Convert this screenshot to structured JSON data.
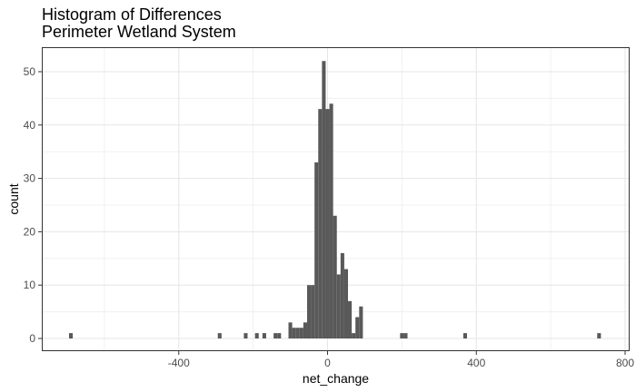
{
  "chart_data": {
    "type": "bar",
    "title": "Histogram of Differences",
    "subtitle": "Perimeter Wetland System",
    "xlabel": "net_change",
    "ylabel": "count",
    "xlim": [
      -700,
      800
    ],
    "ylim": [
      0,
      55
    ],
    "x_ticks": [
      -400,
      0,
      400,
      800
    ],
    "y_ticks": [
      0,
      10,
      20,
      30,
      40,
      50
    ],
    "x_tick_labels": [
      "-400",
      "0",
      "400",
      "800"
    ],
    "y_tick_labels": [
      "0",
      "10",
      "20",
      "30",
      "40",
      "50"
    ],
    "bin_width": 10,
    "grid": true,
    "bar_color": "#595959",
    "bins": [
      {
        "x": -690,
        "count": 1
      },
      {
        "x": -290,
        "count": 1
      },
      {
        "x": -220,
        "count": 1
      },
      {
        "x": -190,
        "count": 1
      },
      {
        "x": -170,
        "count": 1
      },
      {
        "x": -140,
        "count": 1
      },
      {
        "x": -130,
        "count": 1
      },
      {
        "x": -100,
        "count": 3
      },
      {
        "x": -90,
        "count": 2
      },
      {
        "x": -80,
        "count": 2
      },
      {
        "x": -70,
        "count": 2
      },
      {
        "x": -60,
        "count": 3
      },
      {
        "x": -50,
        "count": 10
      },
      {
        "x": -40,
        "count": 10
      },
      {
        "x": -30,
        "count": 33
      },
      {
        "x": -20,
        "count": 43
      },
      {
        "x": -10,
        "count": 52
      },
      {
        "x": 0,
        "count": 43
      },
      {
        "x": 10,
        "count": 44
      },
      {
        "x": 20,
        "count": 23
      },
      {
        "x": 30,
        "count": 12
      },
      {
        "x": 40,
        "count": 16
      },
      {
        "x": 50,
        "count": 13
      },
      {
        "x": 60,
        "count": 7
      },
      {
        "x": 70,
        "count": 1
      },
      {
        "x": 80,
        "count": 4
      },
      {
        "x": 90,
        "count": 6
      },
      {
        "x": 200,
        "count": 1
      },
      {
        "x": 210,
        "count": 1
      },
      {
        "x": 370,
        "count": 1
      },
      {
        "x": 730,
        "count": 1
      }
    ]
  }
}
